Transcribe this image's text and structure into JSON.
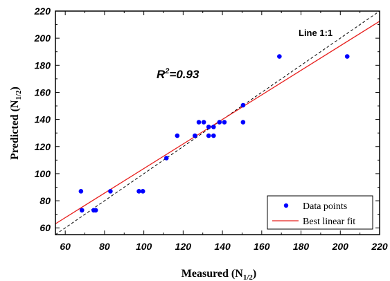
{
  "chart_data": {
    "type": "scatter",
    "xlabel": "Measured (N",
    "xlabel_sub": "1/2",
    "xlabel_end": ")",
    "ylabel": "Predicted (N",
    "ylabel_sub": "1/2",
    "ylabel_end": ")",
    "xlim": [
      55,
      220
    ],
    "ylim": [
      55,
      220
    ],
    "x_ticks": [
      60,
      80,
      100,
      120,
      140,
      160,
      180,
      200,
      220
    ],
    "y_ticks": [
      60,
      80,
      100,
      120,
      140,
      160,
      180,
      200,
      220
    ],
    "grid": false,
    "legend_position": "bottom-right",
    "series": [
      {
        "name": "Data points",
        "color": "#0000ff",
        "marker": "circle",
        "points": [
          [
            68,
            87
          ],
          [
            68.5,
            73
          ],
          [
            74.5,
            73
          ],
          [
            75.5,
            73
          ],
          [
            83,
            87
          ],
          [
            97.5,
            87
          ],
          [
            99.5,
            87
          ],
          [
            111.5,
            111.5
          ],
          [
            117,
            128
          ],
          [
            126,
            128
          ],
          [
            128,
            138
          ],
          [
            130.5,
            138
          ],
          [
            133,
            128
          ],
          [
            133,
            134.5
          ],
          [
            135.5,
            134.5
          ],
          [
            135.5,
            128
          ],
          [
            138.5,
            138
          ],
          [
            141,
            138
          ],
          [
            150.5,
            150.5
          ],
          [
            150.5,
            138
          ],
          [
            169,
            186.5
          ],
          [
            203.5,
            186.5
          ]
        ]
      },
      {
        "name": "Best linear fit",
        "color": "#e8211f",
        "line": true,
        "points": [
          [
            55,
            63
          ],
          [
            220,
            212.5
          ]
        ]
      }
    ],
    "reference_line": {
      "label": "Line 1:1",
      "points": [
        [
          55,
          55
        ],
        [
          220,
          220
        ]
      ],
      "style": "dashed",
      "color": "#000000"
    },
    "annotations": {
      "r2_base": "R",
      "r2_sup": "2",
      "r2_rest": "=0.93"
    }
  }
}
